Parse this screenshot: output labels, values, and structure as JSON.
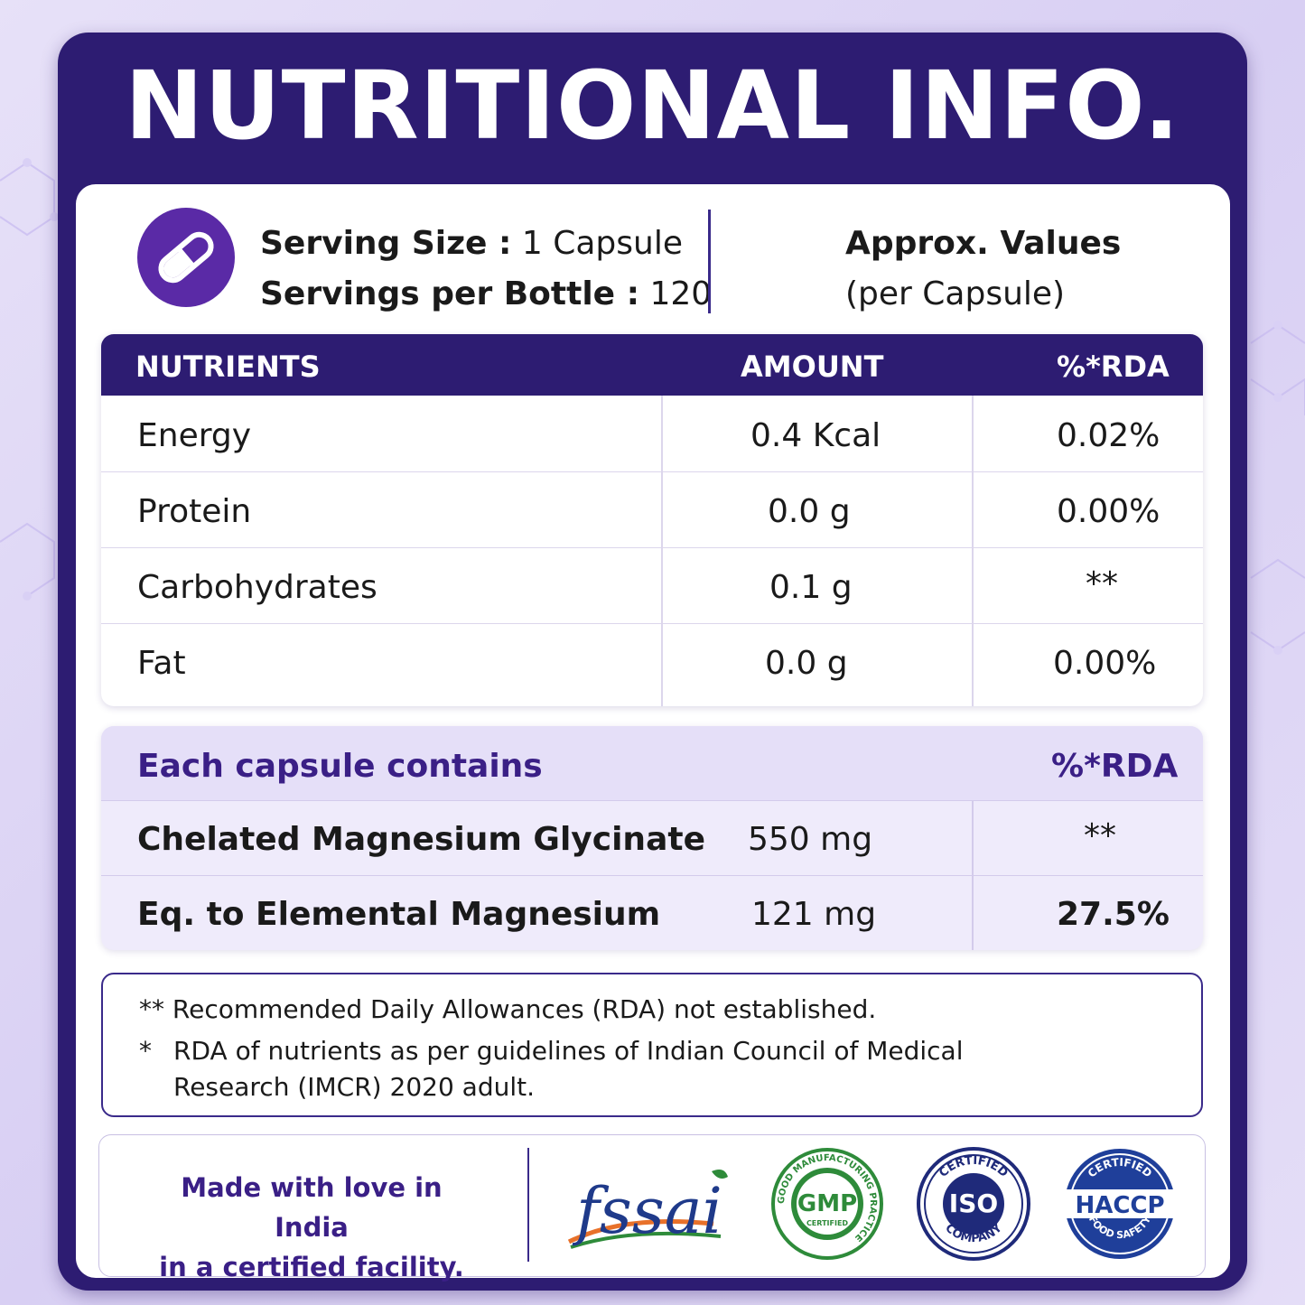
{
  "title": "NUTRITIONAL INFO.",
  "serving": {
    "size_label": "Serving Size :",
    "size_value": "1 Capsule",
    "per_bottle_label": "Servings per Bottle :",
    "per_bottle_value": "120",
    "icon": "capsule-icon"
  },
  "approx": {
    "title": "Approx. Values",
    "subtitle": "(per Capsule)"
  },
  "nutrients_table": {
    "headers": [
      "NUTRIENTS",
      "AMOUNT",
      "%*RDA"
    ],
    "rows": [
      {
        "name": "Energy",
        "amount": "0.4 Kcal",
        "rda": "0.02%"
      },
      {
        "name": "Protein",
        "amount": "0.0 g",
        "rda": "0.00%"
      },
      {
        "name": "Carbohydrates",
        "amount": "0.1 g",
        "rda": "**"
      },
      {
        "name": "Fat",
        "amount": "0.0 g",
        "rda": "0.00%"
      }
    ]
  },
  "capsule_table": {
    "header": "Each capsule contains",
    "rda_header": "%*RDA",
    "rows": [
      {
        "name": "Chelated Magnesium Glycinate",
        "amount": "550 mg",
        "rda": "**"
      },
      {
        "name": "Eq. to Elemental Magnesium",
        "amount": "121 mg",
        "rda": "27.5%"
      }
    ]
  },
  "notes": {
    "line1": "** Recommended Daily Allowances (RDA) not established.",
    "line2_mark": "*",
    "line2": "RDA of nutrients as per guidelines of Indian Council of Medical",
    "line3": "Research (IMCR) 2020 adult."
  },
  "footer": {
    "made_line1": "Made with love in India",
    "made_line2": "in a certified facility.",
    "logos": {
      "fssai": "fssai",
      "gmp": {
        "center": "GMP",
        "sub": "CERTIFIED",
        "ring": "GOOD MANUFACTURING PRACTICE"
      },
      "iso": {
        "top": "CERTIFIED",
        "center": "ISO",
        "bottom": "COMPANY"
      },
      "haccp": {
        "top": "CERTIFIED",
        "center": "HACCP",
        "bottom": "FOOD SAFETY"
      }
    }
  },
  "colors": {
    "primary": "#2d1c72",
    "accent": "#5a2aa6",
    "text": "#1a1a1a"
  }
}
